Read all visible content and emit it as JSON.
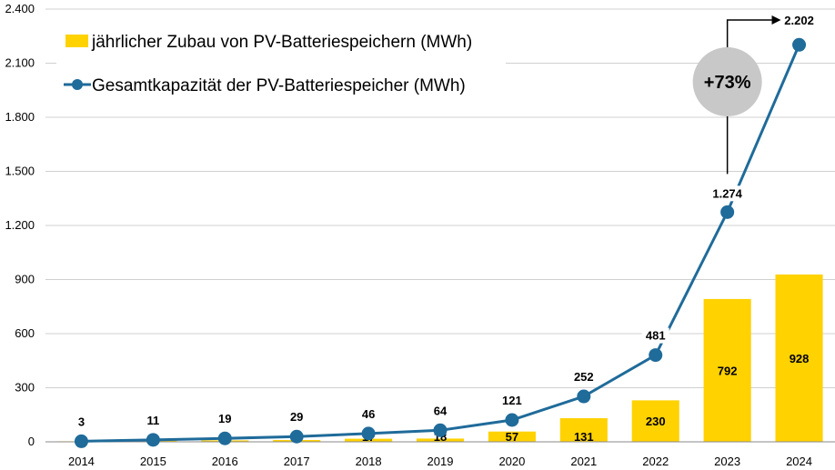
{
  "chart_data": {
    "type": "bar",
    "categories": [
      "2014",
      "2015",
      "2016",
      "2017",
      "2018",
      "2019",
      "2020",
      "2021",
      "2022",
      "2023",
      "2024"
    ],
    "series": [
      {
        "name": "jährlicher Zubau von PV-Batteriespeichern (MWh)",
        "type": "bar",
        "values": [
          3,
          8,
          8,
          10,
          17,
          18,
          57,
          131,
          230,
          792,
          928
        ],
        "labels": [
          "",
          "",
          "",
          "",
          "17",
          "18",
          "57",
          "131",
          "230",
          "792",
          "928"
        ],
        "color": "#FFD200"
      },
      {
        "name": "Gesamtkapazität der PV-Batteriespeicher (MWh)",
        "type": "line",
        "values": [
          3,
          11,
          19,
          29,
          46,
          64,
          121,
          252,
          481,
          1274,
          2202
        ],
        "labels": [
          "3",
          "11",
          "19",
          "29",
          "46",
          "64",
          "121",
          "252",
          "481",
          "1.274",
          "2.202"
        ],
        "color": "#1F6B9A"
      }
    ],
    "ylim": [
      0,
      2400
    ],
    "yticks": [
      0,
      300,
      600,
      900,
      1200,
      1500,
      1800,
      2100,
      2400
    ],
    "ytick_labels": [
      "0",
      "300",
      "600",
      "900",
      "1.200",
      "1.500",
      "1.800",
      "2.100",
      "2.400"
    ],
    "grid": true,
    "legend_position": "top-left",
    "annotation": {
      "text": "+73%",
      "from_category": "2023",
      "to_category": "2024",
      "color": "#C8C8C8"
    }
  }
}
